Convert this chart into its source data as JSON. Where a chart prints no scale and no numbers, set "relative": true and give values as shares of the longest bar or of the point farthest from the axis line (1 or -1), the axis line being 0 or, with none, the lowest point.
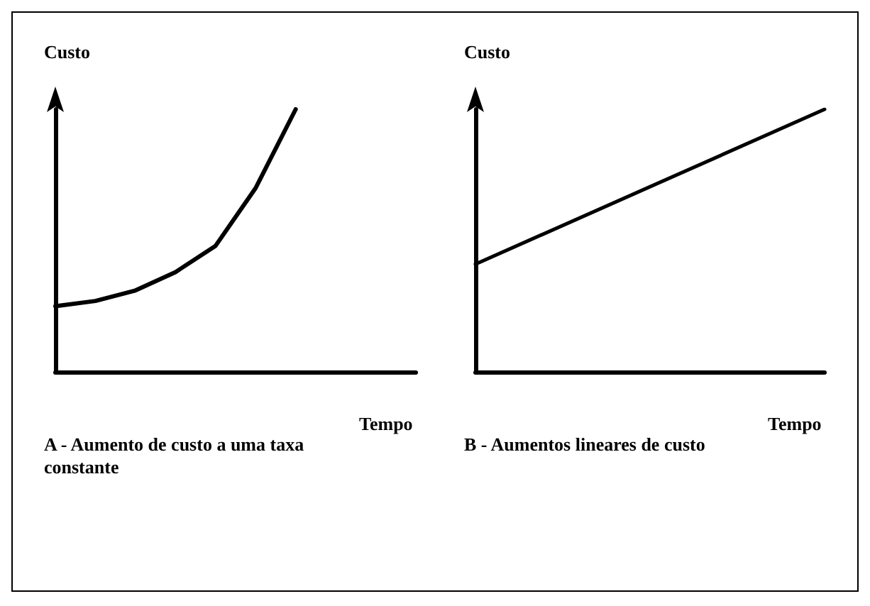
{
  "chart_data": [
    {
      "type": "line",
      "relative": true,
      "ylabel": "Custo",
      "xlabel": "Tempo",
      "categories": [
        null,
        null,
        null,
        null,
        null,
        null,
        null,
        null,
        null,
        null
      ],
      "series": [
        {
          "color": "#000000",
          "values": [
            0.25,
            0.27,
            0.31,
            0.38,
            0.48,
            0.7,
            1,
            null,
            null,
            null
          ]
        }
      ],
      "annotations": [
        "A - Aumento de custo a uma taxa constante"
      ],
      "grid": false,
      "line_style": "solid"
    },
    {
      "type": "line",
      "relative": true,
      "ylabel": "Custo",
      "xlabel": "Tempo",
      "categories": [
        null,
        null
      ],
      "series": [
        {
          "color": "#000000",
          "values": [
            0.41,
            1
          ]
        }
      ],
      "annotations": [
        "B - Aumentos lineares de custo"
      ],
      "grid": false,
      "line_style": "solid"
    }
  ]
}
